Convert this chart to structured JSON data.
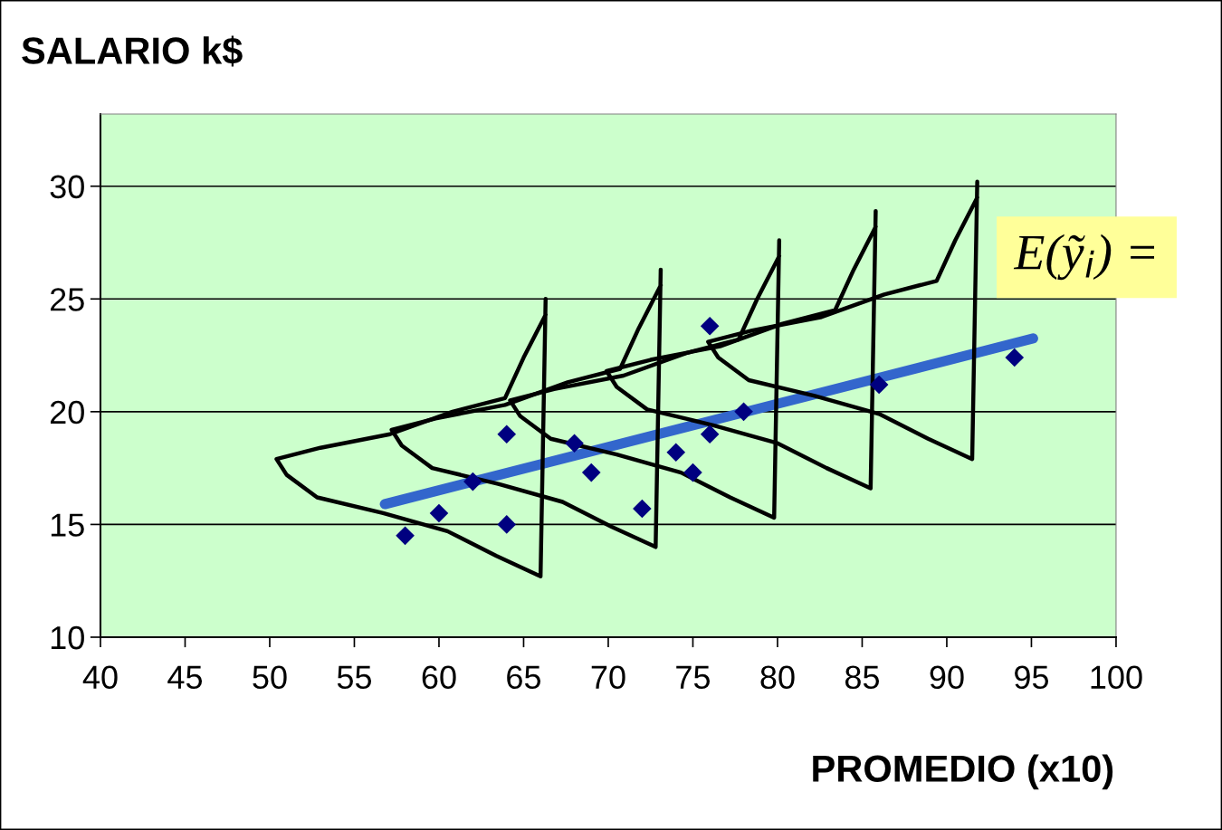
{
  "chart_data": {
    "type": "scatter",
    "ylabel": "SALARIO k$",
    "xlabel": "PROMEDIO (x10)",
    "xlim": [
      40,
      100
    ],
    "xticks": [
      40,
      45,
      50,
      55,
      60,
      65,
      70,
      75,
      80,
      85,
      90,
      95,
      100
    ],
    "ylim": [
      10,
      33.2
    ],
    "yticks": [
      10,
      15,
      20,
      25,
      30
    ],
    "grid": "y",
    "marker": "diamond",
    "annotations": [
      "E(ỹ$_{i}$) ="
    ],
    "series": [
      {
        "color": "#000080",
        "x": [
          58,
          60,
          62,
          64,
          64,
          68,
          69,
          72,
          74,
          75,
          76,
          76,
          78,
          86,
          94
        ],
        "values": [
          14.5,
          15.5,
          16.9,
          19.0,
          15.0,
          18.6,
          17.3,
          15.7,
          18.2,
          17.3,
          23.8,
          19.0,
          20.0,
          21.2,
          22.4
        ]
      },
      {
        "type": "line",
        "color": "#3366cc",
        "marker": "none",
        "x": [
          56.8,
          95.1
        ],
        "values": [
          15.9,
          23.25
        ]
      },
      {
        "type": "line",
        "color": "#000000",
        "marker": "none",
        "x": [
          66.3,
          65.0,
          63.9,
          60.8,
          57.1,
          53.0,
          50.4,
          51.0,
          52.8,
          56.7,
          60.5,
          63.4,
          66.0,
          66.3
        ],
        "values": [
          24.3,
          22.4,
          20.6,
          20.0,
          19.0,
          18.4,
          17.9,
          17.2,
          16.2,
          15.5,
          14.7,
          13.6,
          12.7,
          25.0
        ]
      },
      {
        "type": "line",
        "color": "#000000",
        "marker": "none",
        "x": [
          73.1,
          71.8,
          70.7,
          67.6,
          63.9,
          59.8,
          57.2,
          57.8,
          59.6,
          63.5,
          67.3,
          70.2,
          72.8,
          73.1
        ],
        "values": [
          25.6,
          23.7,
          21.9,
          21.3,
          20.3,
          19.7,
          19.2,
          18.5,
          17.5,
          16.8,
          16.0,
          14.9,
          14.0,
          26.3
        ]
      },
      {
        "type": "line",
        "color": "#000000",
        "marker": "none",
        "x": [
          80.1,
          78.8,
          77.7,
          74.6,
          70.9,
          66.8,
          64.2,
          64.8,
          66.6,
          70.5,
          74.3,
          77.2,
          79.8,
          80.1
        ],
        "values": [
          26.9,
          25.0,
          23.2,
          22.6,
          21.6,
          21.0,
          20.5,
          19.8,
          18.8,
          18.1,
          17.3,
          16.2,
          15.3,
          27.6
        ]
      },
      {
        "type": "line",
        "color": "#000000",
        "marker": "none",
        "x": [
          85.8,
          84.5,
          83.4,
          80.3,
          76.6,
          72.5,
          69.9,
          70.5,
          72.3,
          76.2,
          80.0,
          82.9,
          85.5,
          85.8
        ],
        "values": [
          28.2,
          26.3,
          24.5,
          23.9,
          22.9,
          22.3,
          21.8,
          21.1,
          20.1,
          19.4,
          18.6,
          17.5,
          16.6,
          28.9
        ]
      },
      {
        "type": "line",
        "color": "#000000",
        "marker": "none",
        "x": [
          91.8,
          90.5,
          89.4,
          86.3,
          82.6,
          78.5,
          75.9,
          76.5,
          78.3,
          82.2,
          86.0,
          88.9,
          91.5,
          91.8
        ],
        "values": [
          29.5,
          27.6,
          25.8,
          25.2,
          24.2,
          23.6,
          23.1,
          22.4,
          21.4,
          20.7,
          19.9,
          18.8,
          17.9,
          30.2
        ]
      }
    ]
  }
}
